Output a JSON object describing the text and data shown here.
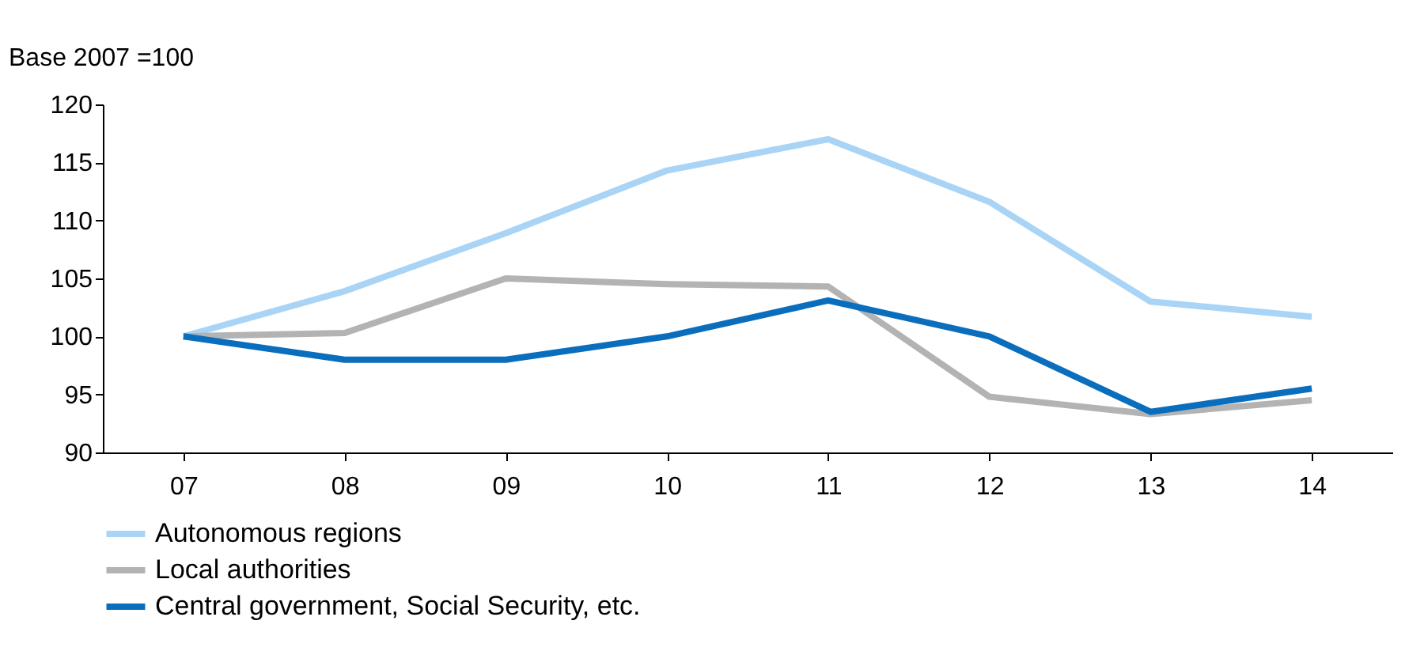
{
  "chart_data": {
    "type": "line",
    "ylabel": "Base 2007 =100",
    "categories": [
      "07",
      "08",
      "09",
      "10",
      "11",
      "12",
      "13",
      "14"
    ],
    "series": [
      {
        "name": "Autonomous regions",
        "color": "#a9d4f5",
        "values": [
          100,
          103.9,
          108.9,
          114.3,
          117,
          111.6,
          103,
          101.7
        ]
      },
      {
        "name": "Local authorities",
        "color": "#b3b3b3",
        "values": [
          100,
          100.3,
          105,
          104.5,
          104.3,
          94.8,
          93.3,
          94.5
        ]
      },
      {
        "name": "Central government, Social Security, etc.",
        "color": "#0a6ebd",
        "values": [
          100,
          98,
          98,
          100,
          103.1,
          100,
          93.5,
          95.5
        ]
      }
    ],
    "ylim": [
      90,
      120
    ],
    "yticks": [
      90,
      95,
      100,
      105,
      110,
      115,
      120
    ],
    "grid": false,
    "legend": "bottom",
    "marker": "none",
    "line_style": "solid"
  }
}
